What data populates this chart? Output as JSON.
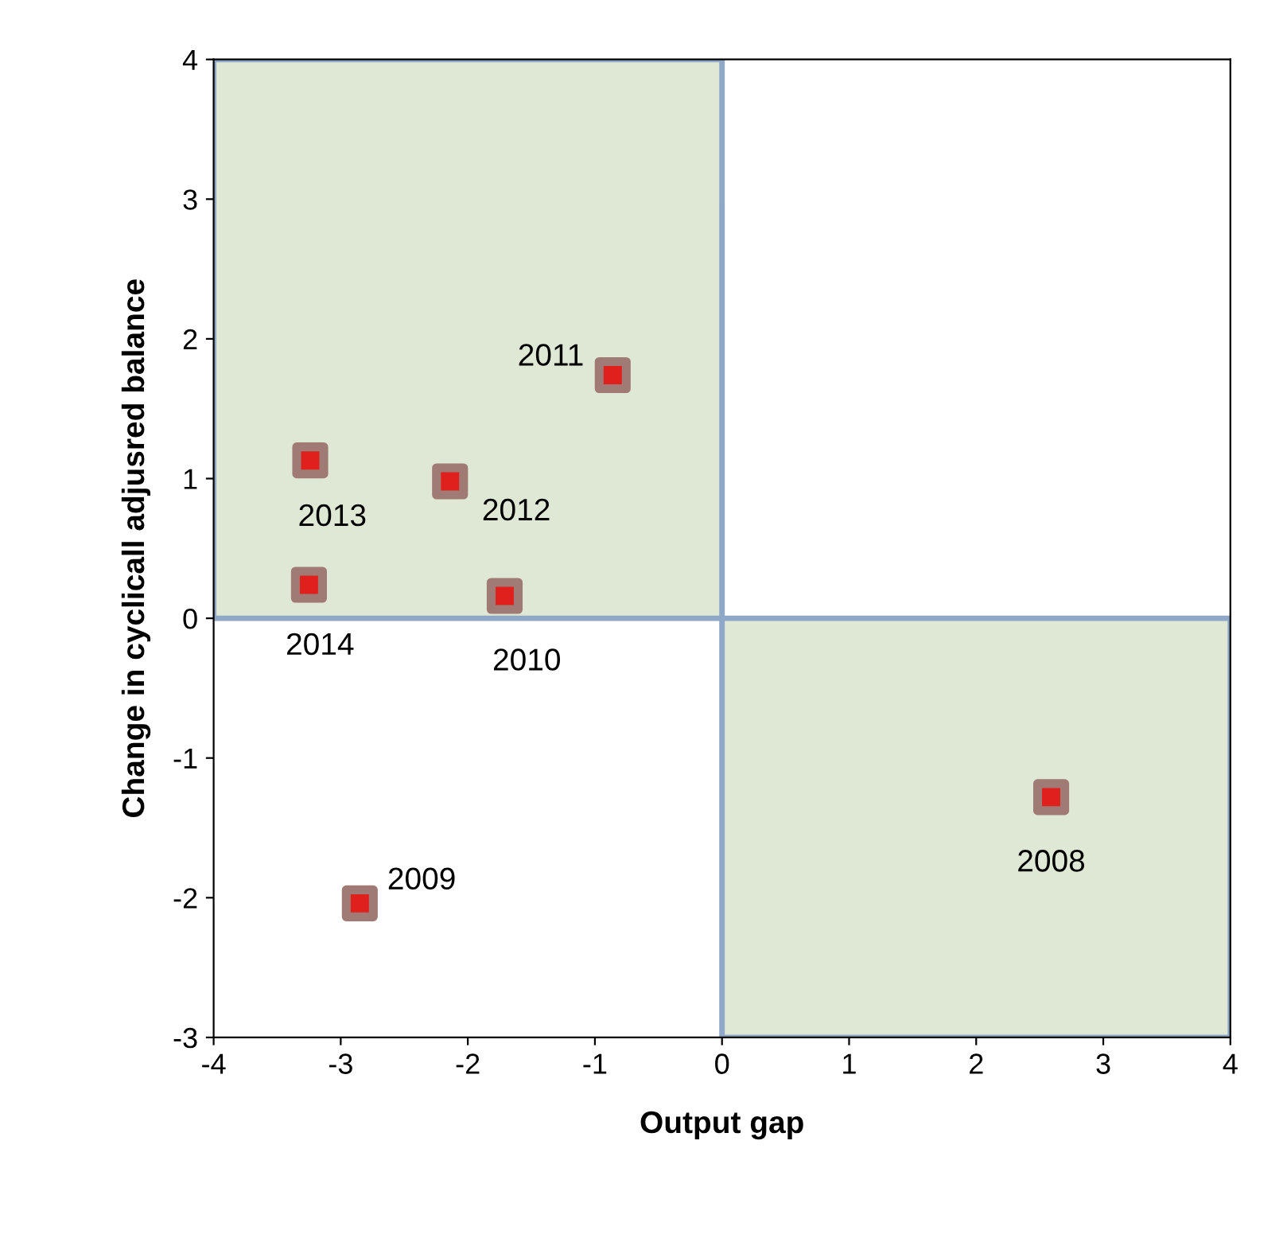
{
  "chart_data": {
    "type": "scatter",
    "xlabel": "Output gap",
    "ylabel": "Change in cyclicall adjusred balance",
    "x": [
      2.59,
      -2.85,
      -1.71,
      -0.86,
      -2.14,
      -3.24,
      -3.25
    ],
    "series": [
      {
        "type": "area",
        "x": [
          -4,
          0
        ],
        "color": "#dfe8d5",
        "values": [
          4,
          4
        ]
      },
      {
        "type": "area",
        "x": [
          0,
          4
        ],
        "color": "#dfe8d5",
        "values": [
          -3,
          -3
        ]
      },
      {
        "color": "#e0201c",
        "marker": "square",
        "values": [
          -1.28,
          -2.04,
          0.16,
          1.74,
          0.98,
          1.13,
          0.24
        ]
      }
    ],
    "annotations": [
      {
        "text": "2008",
        "x": 2.59,
        "y": -1.28
      },
      {
        "text": "2009",
        "x": -2.85,
        "y": -2.04
      },
      {
        "text": "2010",
        "x": -1.71,
        "y": 0.16
      },
      {
        "text": "2011",
        "x": -0.86,
        "y": 1.74
      },
      {
        "text": "2012",
        "x": -2.14,
        "y": 0.98
      },
      {
        "text": "2013",
        "x": -3.24,
        "y": 1.13
      },
      {
        "text": "2014",
        "x": -3.25,
        "y": 0.24
      }
    ],
    "xlim": [
      -4,
      4
    ],
    "ylim": [
      -3,
      4
    ],
    "xticks": [
      -4,
      -3,
      -2,
      -1,
      0,
      1,
      2,
      3,
      4
    ],
    "yticks": [
      -3,
      -2,
      -1,
      0,
      1,
      2,
      3,
      4
    ],
    "grid": false
  }
}
